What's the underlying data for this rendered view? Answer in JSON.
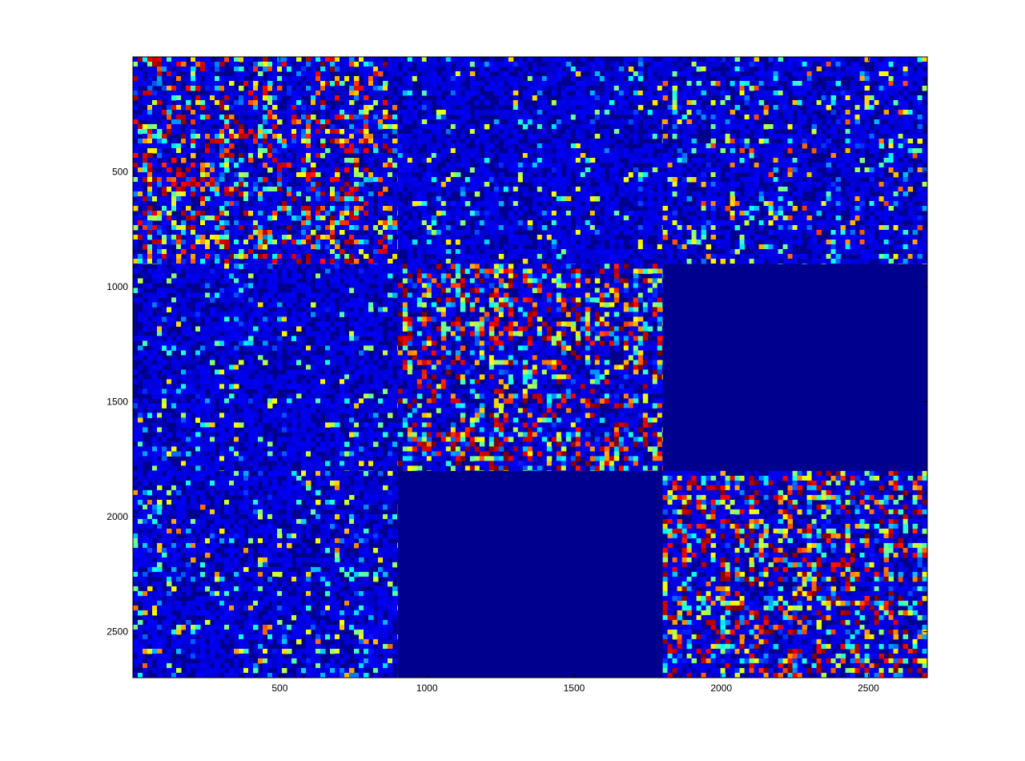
{
  "chart_data": {
    "type": "heatmap",
    "title": "",
    "xlabel": "",
    "ylabel": "",
    "xlim": [
      1,
      2700
    ],
    "ylim": [
      1,
      2700
    ],
    "y_axis_direction": "top-to-bottom",
    "colormap": "jet",
    "colormap_stops": [
      "#00008F",
      "#0000FF",
      "#00FFFF",
      "#FFFF00",
      "#FF0000",
      "#800000"
    ],
    "x_ticks": [
      500,
      1000,
      1500,
      2000,
      2500
    ],
    "y_ticks": [
      500,
      1000,
      1500,
      2000,
      2500
    ],
    "x_tick_labels": [
      "500",
      "1000",
      "1500",
      "2000",
      "2500"
    ],
    "y_tick_labels": [
      "500",
      "1000",
      "1500",
      "2000",
      "2500"
    ],
    "block_bounds": [
      0,
      900,
      1800,
      2700
    ],
    "block_intensity": [
      [
        0.75,
        0.18,
        0.35
      ],
      [
        0.18,
        0.8,
        0.0
      ],
      [
        0.3,
        0.0,
        0.8
      ]
    ],
    "grid": false,
    "legend": false
  }
}
